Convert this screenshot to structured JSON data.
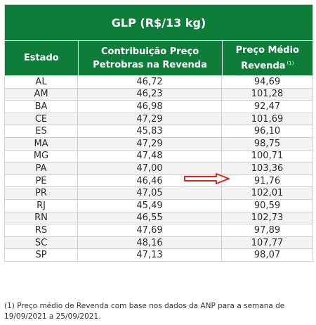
{
  "title": "GLP (R$/13 kg)",
  "headers": {
    "estado": "Estado",
    "contribuicao": "Contribuição Preço Petrobras na Revenda",
    "preco_medio": "Preço Médio Revenda",
    "preco_medio_note": "(1)"
  },
  "rows": [
    {
      "estado": "AL",
      "contribuicao": "46,72",
      "preco": "94,69"
    },
    {
      "estado": "AM",
      "contribuicao": "46,23",
      "preco": "101,28"
    },
    {
      "estado": "BA",
      "contribuicao": "46,98",
      "preco": "92,47"
    },
    {
      "estado": "CE",
      "contribuicao": "47,29",
      "preco": "101,69"
    },
    {
      "estado": "ES",
      "contribuicao": "45,83",
      "preco": "96,10"
    },
    {
      "estado": "MA",
      "contribuicao": "47,29",
      "preco": "98,75"
    },
    {
      "estado": "MG",
      "contribuicao": "47,48",
      "preco": "100,71"
    },
    {
      "estado": "PA",
      "contribuicao": "47,00",
      "preco": "103,36"
    },
    {
      "estado": "PE",
      "contribuicao": "46,46",
      "preco": "91,76"
    },
    {
      "estado": "PR",
      "contribuicao": "47,05",
      "preco": "102,01"
    },
    {
      "estado": "RJ",
      "contribuicao": "45,49",
      "preco": "90,59"
    },
    {
      "estado": "RN",
      "contribuicao": "46,55",
      "preco": "102,73"
    },
    {
      "estado": "RS",
      "contribuicao": "47,69",
      "preco": "97,89"
    },
    {
      "estado": "SC",
      "contribuicao": "48,16",
      "preco": "107,77"
    },
    {
      "estado": "SP",
      "contribuicao": "47,13",
      "preco": "98,07"
    }
  ],
  "footnote": "(1) Preço médio de Revenda com base nos dados da ANP para a semana de 19/09/2021 a 25/09/2021.",
  "colors": {
    "header_green": "#0f7d3a",
    "arrow_red": "#e0201b"
  },
  "annotation": {
    "icon": "arrow-right-icon",
    "points_to_estado": "PA"
  }
}
